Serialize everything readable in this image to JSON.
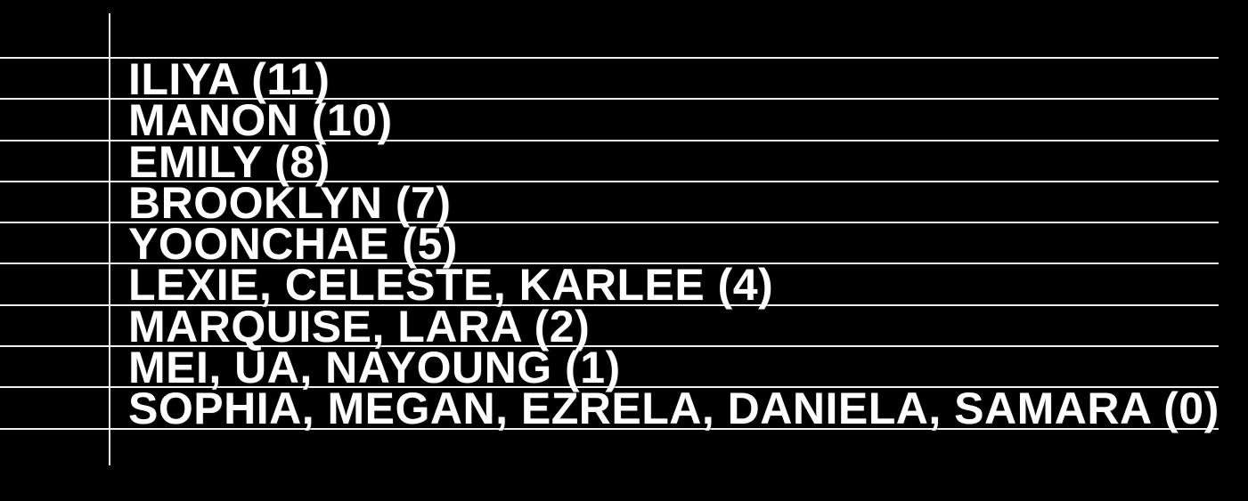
{
  "colors": {
    "background": "#000000",
    "text": "#ffffff",
    "grid_line": "#efefef"
  },
  "leaderboard": {
    "entries": [
      {
        "label": "ILIYA (11)",
        "names": [
          "ILIYA"
        ],
        "score": 11
      },
      {
        "label": "MANON (10)",
        "names": [
          "MANON"
        ],
        "score": 10
      },
      {
        "label": "EMILY (8)",
        "names": [
          "EMILY"
        ],
        "score": 8
      },
      {
        "label": "BROOKLYN (7)",
        "names": [
          "BROOKLYN"
        ],
        "score": 7
      },
      {
        "label": "YOONCHAE (5)",
        "names": [
          "YOONCHAE"
        ],
        "score": 5
      },
      {
        "label": "LEXIE, CELESTE, KARLEE (4)",
        "names": [
          "LEXIE",
          "CELESTE",
          "KARLEE"
        ],
        "score": 4
      },
      {
        "label": "MARQUISE, LARA (2)",
        "names": [
          "MARQUISE",
          "LARA"
        ],
        "score": 2
      },
      {
        "label": "MEI, UA, NAYOUNG (1)",
        "names": [
          "MEI",
          "UA",
          "NAYOUNG"
        ],
        "score": 1
      },
      {
        "label": "SOPHIA, MEGAN, EZRELA, DANIELA, SAMARA (0)",
        "names": [
          "SOPHIA",
          "MEGAN",
          "EZRELA",
          "DANIELA",
          "SAMARA"
        ],
        "score": 0
      }
    ]
  },
  "chart_data": {
    "type": "table",
    "title": "",
    "categories": [
      "ILIYA",
      "MANON",
      "EMILY",
      "BROOKLYN",
      "YOONCHAE",
      "LEXIE, CELESTE, KARLEE",
      "MARQUISE, LARA",
      "MEI, UA, NAYOUNG",
      "SOPHIA, MEGAN, EZRELA, DANIELA, SAMARA"
    ],
    "values": [
      11,
      10,
      8,
      7,
      5,
      4,
      2,
      1,
      0
    ],
    "legend": "off",
    "grid": "horizontal-row-lines"
  }
}
